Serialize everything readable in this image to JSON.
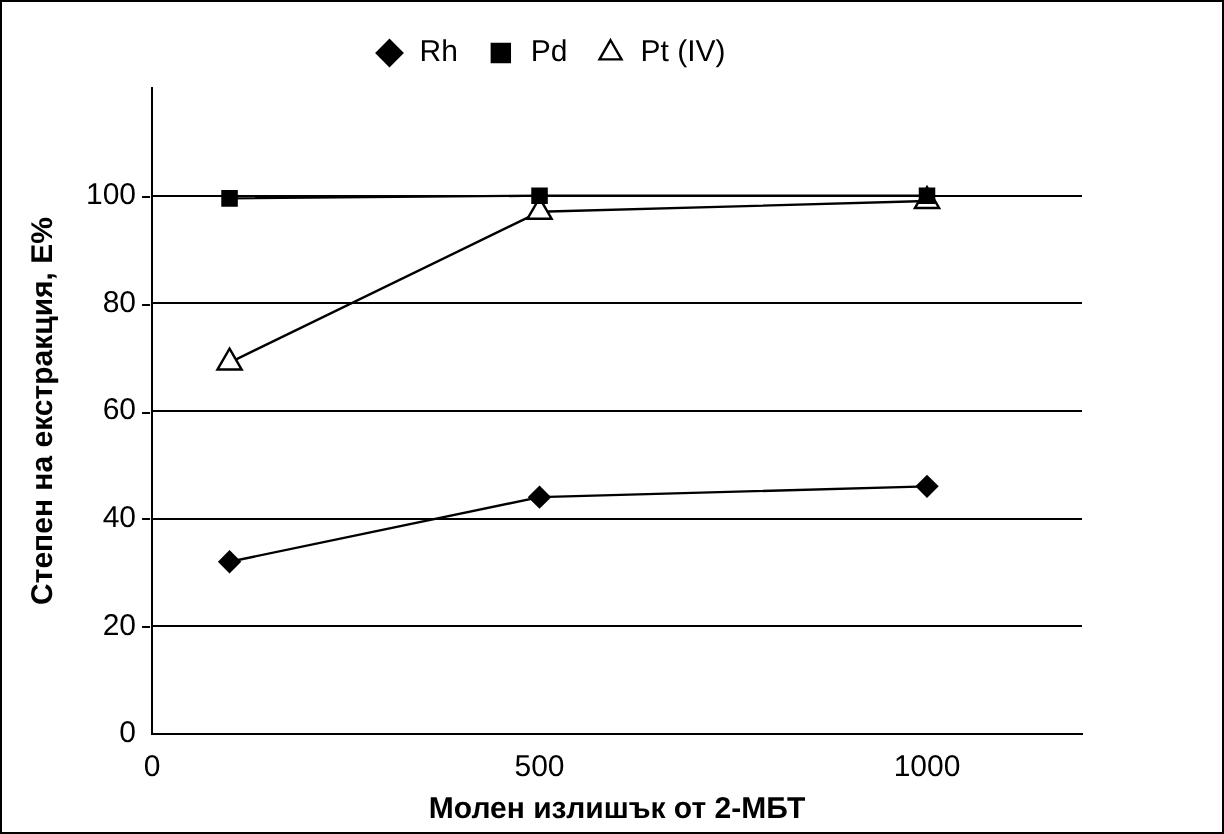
{
  "chart_data": {
    "type": "line",
    "xlabel": "Молен излишък от 2-МБТ",
    "ylabel": "Степен на екстракция, E%",
    "x": [
      100,
      500,
      1000
    ],
    "series": [
      {
        "name": "Rh",
        "color": "#000000",
        "values": [
          32,
          44,
          46
        ],
        "marker": "diamond"
      },
      {
        "name": "Pd",
        "color": "#000000",
        "values": [
          99.5,
          100,
          100
        ],
        "marker": "square"
      },
      {
        "name": "Pt (IV)",
        "color": "#000000",
        "values": [
          69,
          97,
          99
        ],
        "marker": "triangle"
      }
    ],
    "xlim": [
      0,
      1200
    ],
    "xticks": [
      0,
      500,
      1000
    ],
    "ylim": [
      0,
      120
    ],
    "yticks": [
      0,
      20,
      40,
      60,
      80,
      100
    ],
    "grid": "y",
    "legend": "top",
    "line_style": "solid"
  }
}
